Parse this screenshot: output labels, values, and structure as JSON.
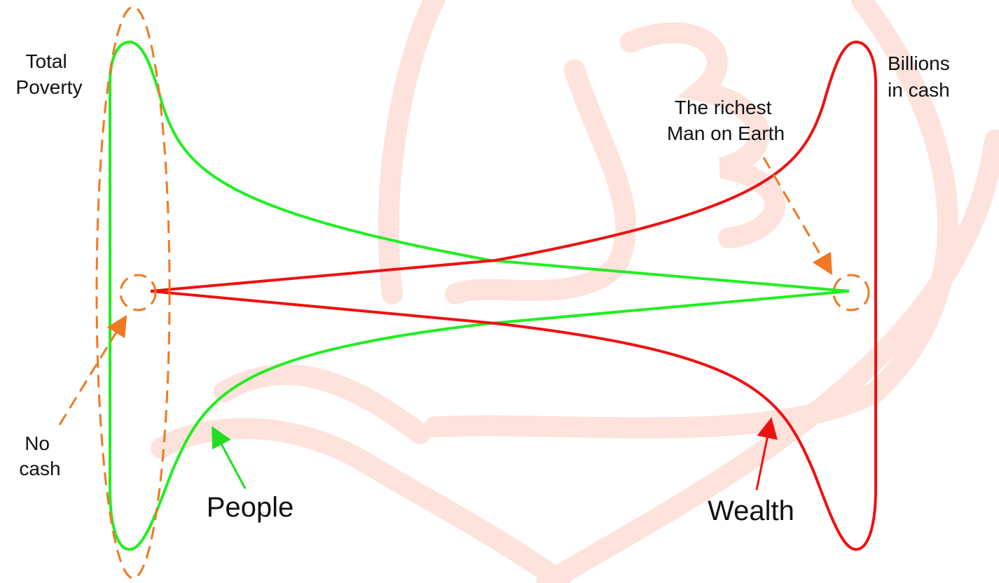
{
  "labels": {
    "total_poverty": [
      "Total",
      "Poverty"
    ],
    "billions_in_cash": [
      "Billions",
      "in cash"
    ],
    "richest_man": [
      "The richest",
      "Man on Earth"
    ],
    "no_cash": [
      "No",
      "cash"
    ],
    "people": "People",
    "wealth": "Wealth"
  }
}
